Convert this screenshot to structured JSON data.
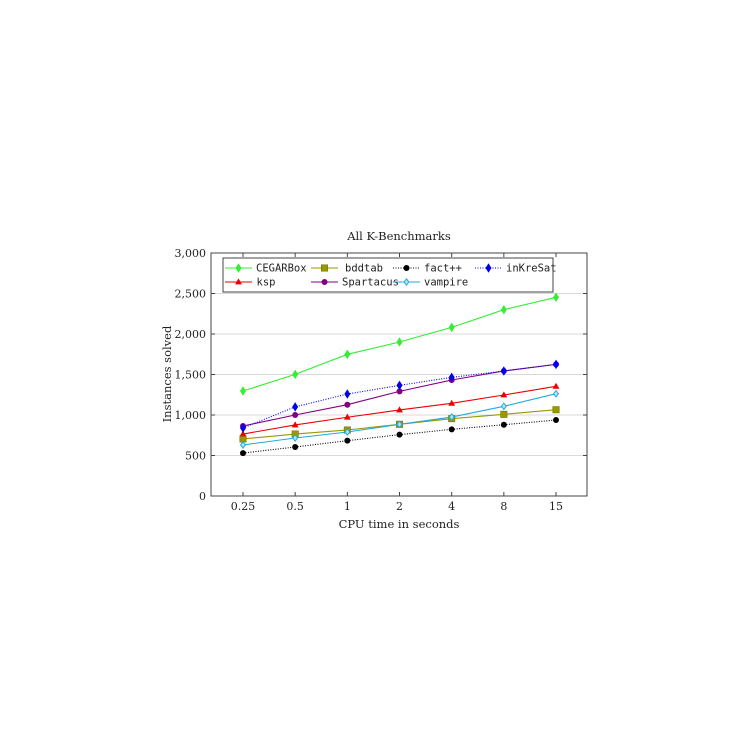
{
  "chart_data": {
    "type": "line",
    "title": "All K-Benchmarks",
    "xlabel": "CPU time in seconds",
    "ylabel": "Instances solved",
    "categories": [
      "0.25",
      "0.5",
      "1",
      "2",
      "4",
      "8",
      "15"
    ],
    "ylim": [
      0,
      3000
    ],
    "yticks": [
      0,
      500,
      1000,
      1500,
      2000,
      2500,
      3000
    ],
    "ytick_labels": [
      "0",
      "500",
      "1,000",
      "1,500",
      "2,000",
      "2,500",
      "3,000"
    ],
    "grid": "horizontal",
    "legend_position": "top-left inside, 4 columns",
    "series": [
      {
        "name": "CEGARBox",
        "color": "#33ee33",
        "marker": "diamond",
        "dash": "solid",
        "values": [
          1296,
          1502,
          1749,
          1901,
          2082,
          2300,
          2453
        ]
      },
      {
        "name": "bddtab",
        "color": "#999900",
        "marker": "square",
        "dash": "solid",
        "values": [
          704,
          765,
          815,
          885,
          955,
          1008,
          1065
        ]
      },
      {
        "name": "fact++",
        "color": "#000000",
        "marker": "circle",
        "dash": "dotted",
        "values": [
          530,
          605,
          683,
          757,
          823,
          880,
          938
        ]
      },
      {
        "name": "inKreSat",
        "color": "#0000ee",
        "marker": "diamond",
        "dash": "dotted",
        "values": [
          840,
          1100,
          1259,
          1366,
          1465,
          1543,
          1625
        ]
      },
      {
        "name": "ksp",
        "color": "#ee0000",
        "marker": "triangle",
        "dash": "solid",
        "values": [
          765,
          877,
          972,
          1062,
          1144,
          1247,
          1354
        ]
      },
      {
        "name": "Spartacus",
        "color": "#800080",
        "marker": "circle",
        "dash": "solid",
        "values": [
          864,
          1000,
          1127,
          1292,
          1432,
          1543,
          1625
        ]
      },
      {
        "name": "vampire",
        "color": "#22aadd",
        "marker": "diamond-open",
        "dash": "solid",
        "values": [
          630,
          716,
          790,
          885,
          975,
          1107,
          1263
        ]
      }
    ]
  }
}
